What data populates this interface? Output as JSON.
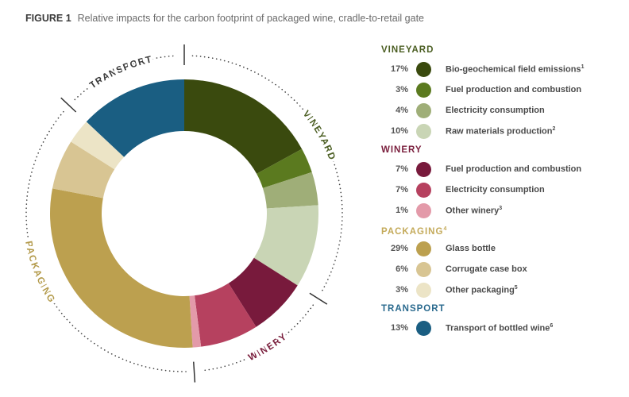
{
  "title": {
    "figure": "FIGURE 1",
    "text": "Relative impacts for the carbon footprint of packaged wine, cradle-to-retail gate"
  },
  "chart_data": {
    "type": "pie",
    "donut": true,
    "title": "Relative impacts for the carbon footprint of packaged wine, cradle-to-retail gate",
    "groups": [
      {
        "name": "VINEYARD",
        "sup": "",
        "color": "#4b5e22",
        "label_color": "#4b5e22",
        "items": [
          {
            "label": "Bio-geochemical field emissions",
            "sup": "1",
            "value": 17,
            "color": "#3a4a0e"
          },
          {
            "label": "Fuel production and combustion",
            "sup": "",
            "value": 3,
            "color": "#5b7a1f"
          },
          {
            "label": "Electricity consumption",
            "sup": "",
            "value": 4,
            "color": "#9fae78"
          },
          {
            "label": "Raw materials production",
            "sup": "2",
            "value": 10,
            "color": "#c9d5b5"
          }
        ]
      },
      {
        "name": "WINERY",
        "sup": "",
        "color": "#7a1f3d",
        "label_color": "#7a1f3d",
        "items": [
          {
            "label": "Fuel production and combustion",
            "sup": "",
            "value": 7,
            "color": "#781a3c"
          },
          {
            "label": "Electricity consumption",
            "sup": "",
            "value": 7,
            "color": "#b6415f"
          },
          {
            "label": "Other winery",
            "sup": "3",
            "value": 1,
            "color": "#e39aa9"
          }
        ]
      },
      {
        "name": "PACKAGING",
        "sup": "4",
        "color": "#c4aa5a",
        "label_color": "#b39a4a",
        "items": [
          {
            "label": "Glass bottle",
            "sup": "",
            "value": 29,
            "color": "#bca04f"
          },
          {
            "label": "Corrugate case box",
            "sup": "",
            "value": 6,
            "color": "#d8c593"
          },
          {
            "label": "Other packaging",
            "sup": "5",
            "value": 3,
            "color": "#ece4c6"
          }
        ]
      },
      {
        "name": "TRANSPORT",
        "sup": "",
        "color": "#2a6a8e",
        "label_color": "#3a3a3a",
        "items": [
          {
            "label": "Transport of bottled wine",
            "sup": "6",
            "value": 13,
            "color": "#1a5e82"
          }
        ]
      }
    ],
    "unit": "%"
  }
}
